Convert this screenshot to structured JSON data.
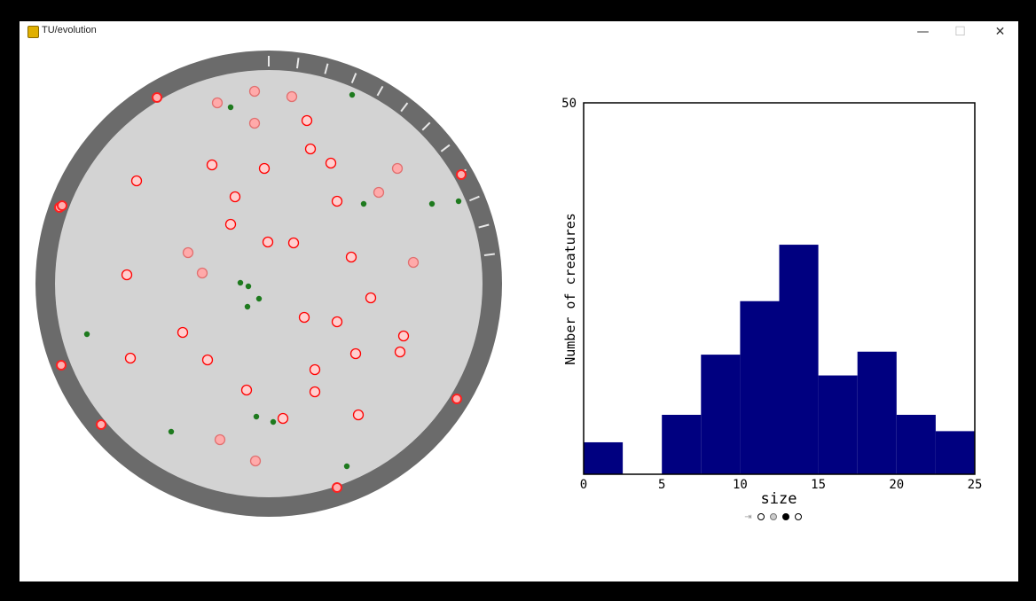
{
  "window": {
    "title": "TU/evolution",
    "icon": "python-icon",
    "controls": {
      "minimize": "—",
      "maximize": "☐",
      "close": "✕"
    }
  },
  "arena": {
    "ground_color": "#d3d3d3",
    "border_color": "#6b6b6b",
    "creature_stroke": "#ff0000",
    "creature_fill": "#ffaaaa",
    "food_color": "#1e7a1e"
  },
  "chart_data": {
    "type": "bar",
    "ylabel": "Number of creatures",
    "xlabel": "size",
    "xlim": [
      0,
      25
    ],
    "ylim": [
      0,
      50
    ],
    "x_ticks": [
      0,
      5,
      10,
      15,
      20,
      25
    ],
    "y_tick_labels": [
      "50"
    ],
    "bar_color": "#000080",
    "bins": [
      {
        "x0": 0.0,
        "x1": 2.5,
        "value": 4.3
      },
      {
        "x0": 2.5,
        "x1": 5.0,
        "value": 0
      },
      {
        "x0": 5.0,
        "x1": 7.5,
        "value": 8
      },
      {
        "x0": 7.5,
        "x1": 10.0,
        "value": 16.1
      },
      {
        "x0": 10.0,
        "x1": 12.5,
        "value": 23.3
      },
      {
        "x0": 12.5,
        "x1": 15.0,
        "value": 30.9
      },
      {
        "x0": 15.0,
        "x1": 17.5,
        "value": 13.3
      },
      {
        "x0": 17.5,
        "x1": 20.0,
        "value": 16.5
      },
      {
        "x0": 20.0,
        "x1": 22.5,
        "value": 8
      },
      {
        "x0": 22.5,
        "x1": 25.0,
        "value": 5.8
      }
    ]
  },
  "toolbar": {
    "icons": [
      "pan-arrow-icon",
      "circle-icon",
      "circle-grey-icon",
      "circle-filled-icon",
      "circle-icon"
    ]
  }
}
